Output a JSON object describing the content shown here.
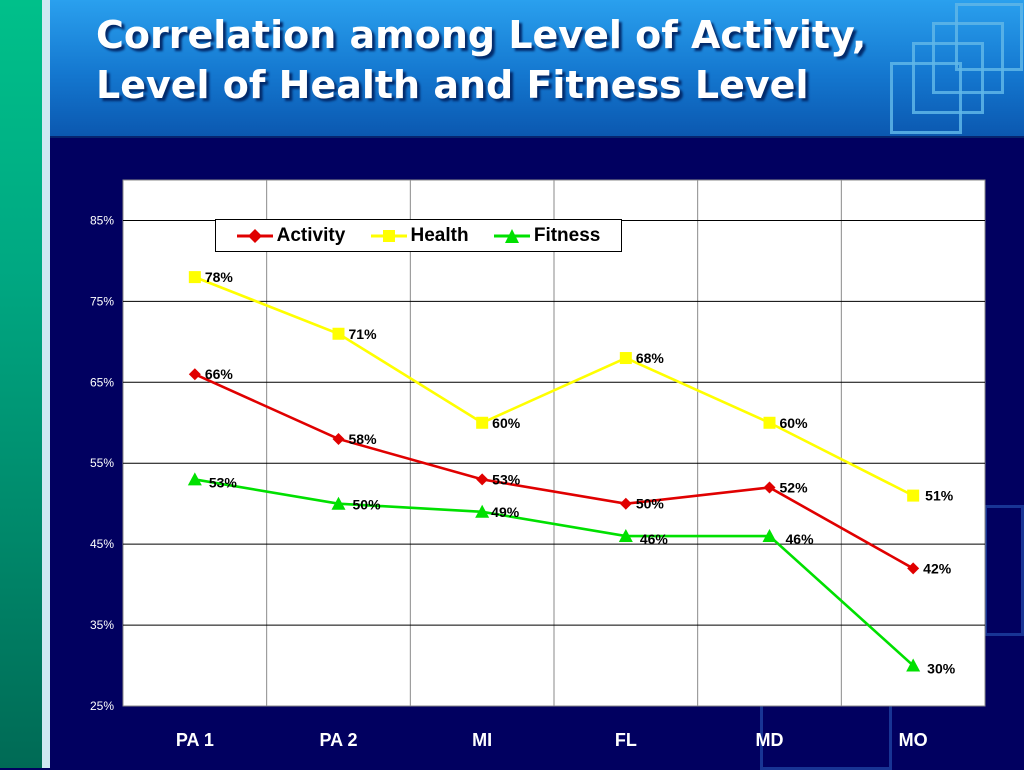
{
  "title": {
    "line1": "Correlation among Level of Activity,",
    "line2": "Level of Health and Fitness Level"
  },
  "colors": {
    "activity": "#e00000",
    "health": "#ffff00",
    "fitness": "#00e000",
    "background": "#010060"
  },
  "chart_data": {
    "type": "line",
    "categories": [
      "PA 1",
      "PA 2",
      "MI",
      "FL",
      "MD",
      "MO"
    ],
    "series": [
      {
        "name": "Activity",
        "marker": "diamond",
        "values": [
          66,
          58,
          53,
          50,
          52,
          42
        ],
        "labels": [
          "66%",
          "58%",
          "53%",
          "50%",
          "52%",
          "42%"
        ]
      },
      {
        "name": "Health",
        "marker": "square",
        "values": [
          78,
          71,
          60,
          68,
          60,
          51
        ],
        "labels": [
          "78%",
          "71%",
          "60%",
          "68%",
          "60%",
          "51%"
        ]
      },
      {
        "name": "Fitness",
        "marker": "triangle",
        "values": [
          53,
          50,
          49,
          46,
          46,
          30
        ],
        "labels": [
          "53%",
          "50%",
          "49%",
          "46%",
          "46%",
          "30%"
        ]
      }
    ],
    "y_ticks": [
      "25%",
      "35%",
      "45%",
      "55%",
      "65%",
      "75%",
      "85%"
    ],
    "ylim": [
      25,
      90
    ],
    "grid": true,
    "legend_position": "top"
  }
}
